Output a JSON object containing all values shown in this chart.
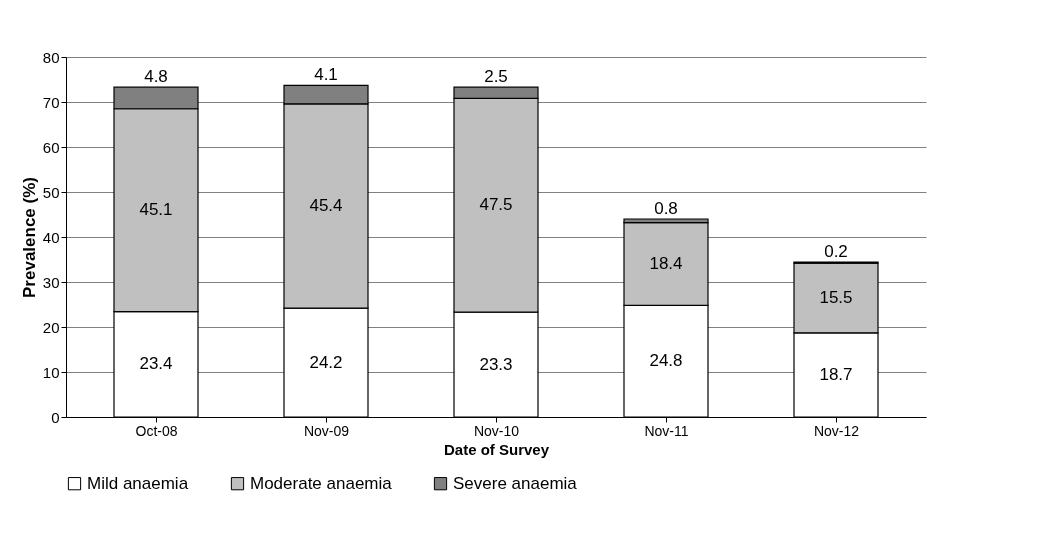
{
  "chart_data": {
    "type": "bar",
    "stacked": true,
    "xlabel": "Date of Survey",
    "ylabel": "Prevalence (%)",
    "categories": [
      "Oct-08",
      "Nov-09",
      "Nov-10",
      "Nov-11",
      "Nov-12"
    ],
    "series": [
      {
        "name": "Mild anaemia",
        "color": "#ffffff",
        "values": [
          23.4,
          24.2,
          23.3,
          24.8,
          18.7
        ]
      },
      {
        "name": "Moderate anaemia",
        "color": "#c0c0c0",
        "values": [
          45.1,
          45.4,
          47.5,
          18.4,
          15.5
        ]
      },
      {
        "name": "Severe anaemia",
        "color": "#808080",
        "values": [
          4.8,
          4.1,
          2.5,
          0.8,
          0.2
        ]
      }
    ],
    "ylim": [
      0,
      80
    ],
    "yticks": [
      0,
      10,
      20,
      30,
      40,
      50,
      60,
      70,
      80
    ],
    "grid": "y",
    "legend": "bottom",
    "data_labels": true
  }
}
